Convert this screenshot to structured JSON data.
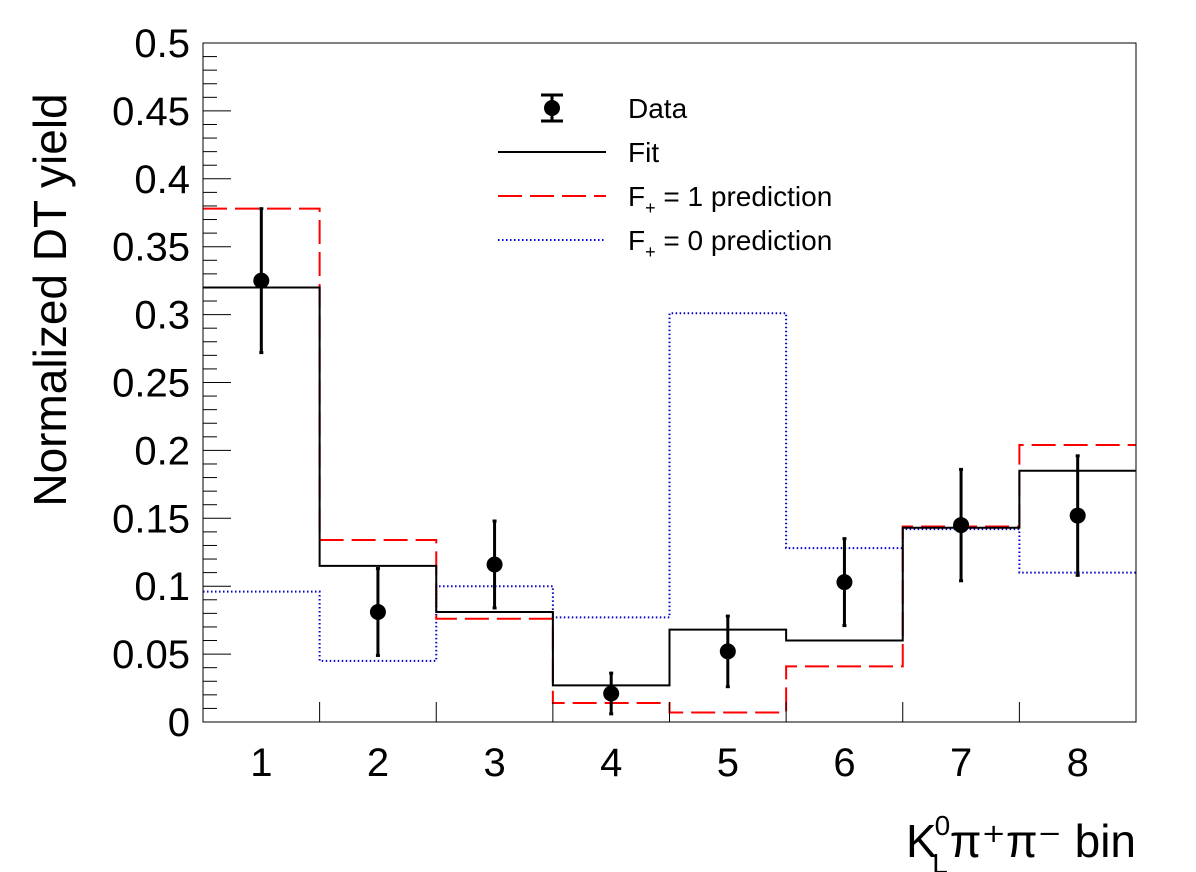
{
  "chart_data": {
    "type": "histogram",
    "title": "",
    "xlabel": {
      "main": "K",
      "sup": "0",
      "sub": "L",
      "rest": "π⁺π⁻ bin"
    },
    "ylabel": "Normalized DT yield",
    "xlim": [
      0.5,
      8.5
    ],
    "ylim": [
      0,
      0.5
    ],
    "x_tick_labels": [
      "1",
      "2",
      "3",
      "4",
      "5",
      "6",
      "7",
      "8"
    ],
    "y_tick_labels": [
      "0",
      "0.05",
      "0.1",
      "0.15",
      "0.2",
      "0.25",
      "0.3",
      "0.35",
      "0.4",
      "0.45",
      "0.5"
    ],
    "grid": false,
    "legend_position": "top-center",
    "series": [
      {
        "name": "Data",
        "kind": "points-with-errors",
        "color": "#000000",
        "x": [
          1,
          2,
          3,
          4,
          5,
          6,
          7,
          8
        ],
        "values": [
          0.325,
          0.081,
          0.116,
          0.021,
          0.052,
          0.103,
          0.145,
          0.152
        ],
        "errors": [
          0.053,
          0.032,
          0.032,
          0.015,
          0.026,
          0.032,
          0.041,
          0.044
        ]
      },
      {
        "name": "Fit",
        "kind": "step",
        "color": "#000000",
        "values": [
          0.32,
          0.115,
          0.081,
          0.027,
          0.068,
          0.06,
          0.143,
          0.185
        ]
      },
      {
        "name": "F₊ = 1 prediction",
        "kind": "step",
        "color": "#ff0000",
        "dash": "dashed",
        "values": [
          0.378,
          0.134,
          0.076,
          0.014,
          0.007,
          0.041,
          0.144,
          0.204
        ]
      },
      {
        "name": "F₊ = 0 prediction",
        "kind": "step",
        "color": "#0000cc",
        "dash": "dotted",
        "values": [
          0.096,
          0.045,
          0.1,
          0.077,
          0.301,
          0.128,
          0.142,
          0.11
        ]
      }
    ],
    "legend": [
      {
        "label": "Data",
        "main": "Data",
        "sub": "",
        "rest": ""
      },
      {
        "label": "Fit",
        "main": "Fit",
        "sub": "",
        "rest": ""
      },
      {
        "label": "F+ = 1 prediction",
        "main": "F",
        "sub": "+",
        "rest": " = 1 prediction"
      },
      {
        "label": "F+ = 0 prediction",
        "main": "F",
        "sub": "+",
        "rest": " = 0 prediction"
      }
    ]
  }
}
